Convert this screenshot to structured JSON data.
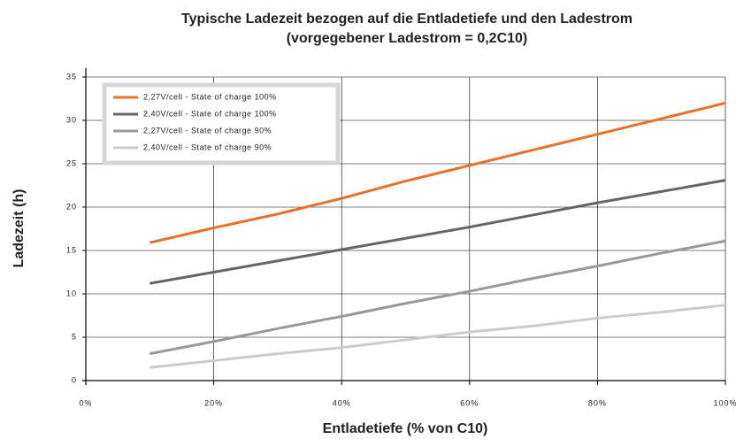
{
  "chart_data": {
    "type": "line",
    "title": "Typische Ladezeit bezogen auf die Entladetiefe und den Ladestrom",
    "subtitle": "(vorgegebener Ladestrom = 0,2C10)",
    "xlabel": "Entladetiefe (% von C10)",
    "ylabel": "Ladezeit (h)",
    "x": [
      10,
      20,
      30,
      40,
      50,
      60,
      70,
      80,
      90,
      100
    ],
    "series": [
      {
        "name": "2,27V/cell - State of charge 100%",
        "color": "#e8702a",
        "values": [
          15.9,
          17.6,
          19.2,
          21.0,
          23.0,
          24.8,
          26.6,
          28.4,
          30.2,
          32.0
        ]
      },
      {
        "name": "2,40V/cell - State of charge 100%",
        "color": "#666666",
        "values": [
          11.2,
          12.5,
          13.8,
          15.1,
          16.4,
          17.7,
          19.1,
          20.5,
          21.8,
          23.1
        ]
      },
      {
        "name": "2,27V/cell - State of charge 90%",
        "color": "#999999",
        "values": [
          3.1,
          4.5,
          6.0,
          7.4,
          8.9,
          10.3,
          11.8,
          13.2,
          14.7,
          16.1
        ]
      },
      {
        "name": "2,40V/cell - State of charge 90%",
        "color": "#cccccc",
        "values": [
          1.5,
          2.3,
          3.1,
          3.8,
          4.7,
          5.6,
          6.3,
          7.2,
          7.9,
          8.7
        ]
      }
    ],
    "xlim": [
      0,
      100
    ],
    "xticks": [
      {
        "value": 0,
        "label": "0%"
      },
      {
        "value": 20,
        "label": "20%"
      },
      {
        "value": 40,
        "label": "40%"
      },
      {
        "value": 60,
        "label": "60%"
      },
      {
        "value": 80,
        "label": "80%"
      },
      {
        "value": 100,
        "label": "100%"
      }
    ],
    "ylim": [
      0,
      35
    ],
    "yticks": [
      0,
      5,
      10,
      15,
      20,
      25,
      30,
      35
    ],
    "grid": true,
    "legend": "upper left"
  }
}
